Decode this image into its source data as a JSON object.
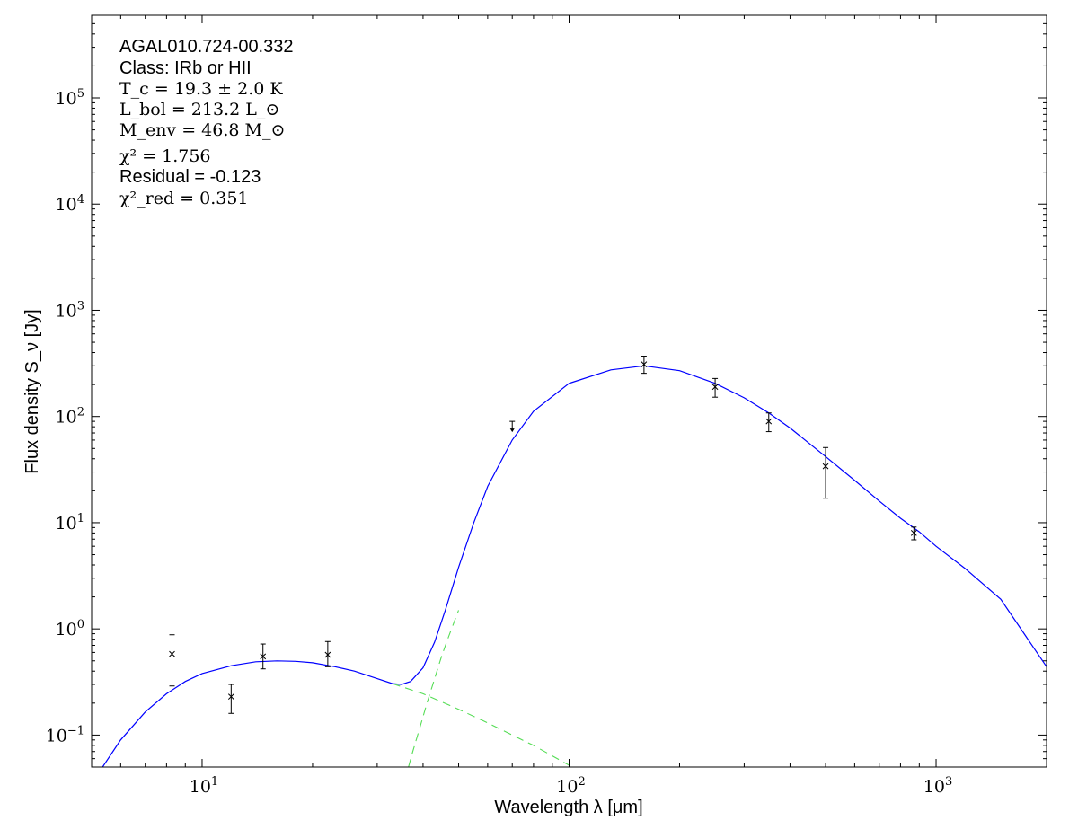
{
  "chart_data": {
    "type": "scatter",
    "xscale": "log",
    "yscale": "log",
    "xlim": [
      5,
      2000
    ],
    "ylim": [
      0.05,
      600000
    ],
    "xlabel": "Wavelength λ [μm]",
    "ylabel": "Flux density S_ν [Jy]",
    "x_ticks": [
      {
        "value": 10,
        "base": "10",
        "exp": "1"
      },
      {
        "value": 100,
        "base": "10",
        "exp": "2"
      },
      {
        "value": 1000,
        "base": "10",
        "exp": "3"
      }
    ],
    "y_ticks": [
      {
        "value": 0.1,
        "base": "10",
        "exp": "−1"
      },
      {
        "value": 1,
        "base": "10",
        "exp": "0"
      },
      {
        "value": 10,
        "base": "10",
        "exp": "1"
      },
      {
        "value": 100,
        "base": "10",
        "exp": "2"
      },
      {
        "value": 1000,
        "base": "10",
        "exp": "3"
      },
      {
        "value": 10000,
        "base": "10",
        "exp": "4"
      },
      {
        "value": 100000,
        "base": "10",
        "exp": "5"
      }
    ],
    "annotations": {
      "source_name": "AGAL010.724-00.332",
      "class_label": "Class: IRb or HII",
      "tc": "T_c = 19.3 ± 2.0 K",
      "lbol": "L_bol = 213.2 L_⊙",
      "menv": "M_env = 46.8 M_⊙",
      "chi2": "χ² = 1.756",
      "residual": "Residual = -0.123",
      "chi2_red": "χ²_red = 0.351"
    },
    "points": [
      {
        "x": 8.28,
        "y": 0.58,
        "yerr_low": 0.29,
        "yerr_high": 0.88
      },
      {
        "x": 12.0,
        "y": 0.23,
        "yerr_low": 0.16,
        "yerr_high": 0.3
      },
      {
        "x": 14.65,
        "y": 0.55,
        "yerr_low": 0.42,
        "yerr_high": 0.72
      },
      {
        "x": 22.0,
        "y": 0.57,
        "yerr_low": 0.44,
        "yerr_high": 0.76
      },
      {
        "x": 160,
        "y": 310,
        "yerr_low": 255,
        "yerr_high": 370
      },
      {
        "x": 250,
        "y": 190,
        "yerr_low": 152,
        "yerr_high": 228
      },
      {
        "x": 350,
        "y": 90,
        "yerr_low": 72,
        "yerr_high": 108
      },
      {
        "x": 500,
        "y": 34,
        "yerr_low": 17,
        "yerr_high": 51
      },
      {
        "x": 870,
        "y": 8.0,
        "yerr_low": 6.9,
        "yerr_high": 9.1
      }
    ],
    "upper_limits": [
      {
        "x": 70,
        "y": 90
      }
    ],
    "series": [
      {
        "style": "solid",
        "color": "#0000ff",
        "x": [
          5,
          6,
          7,
          8,
          9,
          10,
          12,
          14,
          16,
          18,
          20,
          23,
          26,
          30,
          33,
          35,
          37,
          40,
          43,
          46,
          50,
          55,
          60,
          70,
          80,
          100,
          130,
          160,
          200,
          250,
          300,
          350,
          400,
          500,
          600,
          700,
          800,
          900,
          1000,
          1200,
          1500,
          2000
        ],
        "y": [
          0.035,
          0.09,
          0.165,
          0.245,
          0.32,
          0.38,
          0.45,
          0.49,
          0.5,
          0.495,
          0.48,
          0.44,
          0.4,
          0.34,
          0.305,
          0.3,
          0.32,
          0.43,
          0.75,
          1.5,
          3.8,
          10,
          22,
          60,
          112,
          205,
          275,
          300,
          270,
          205,
          150,
          108,
          78,
          42,
          25,
          16,
          11,
          8.2,
          6.0,
          3.7,
          1.9,
          0.44
        ]
      },
      {
        "style": "dashed",
        "color": "#55dd55",
        "x": [
          33,
          40,
          50,
          60,
          70,
          80,
          100
        ],
        "y": [
          0.305,
          0.245,
          0.175,
          0.13,
          0.1,
          0.08,
          0.052
        ]
      },
      {
        "style": "dashed",
        "color": "#55dd55",
        "x": [
          36.5,
          37.5,
          39,
          41,
          43,
          45,
          47,
          50
        ],
        "y": [
          0.05,
          0.07,
          0.11,
          0.2,
          0.34,
          0.56,
          0.85,
          1.5
        ]
      }
    ]
  }
}
